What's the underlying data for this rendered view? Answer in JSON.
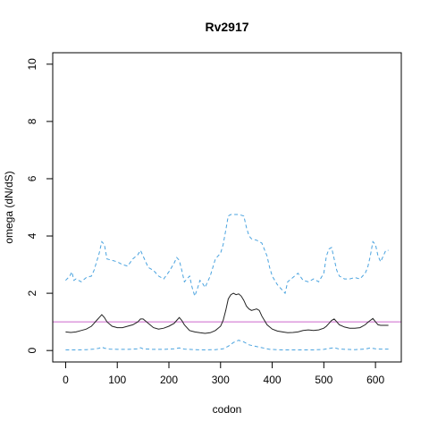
{
  "chart_data": {
    "type": "line",
    "title": "Rv2917",
    "xlabel": "codon",
    "ylabel": "omega (dN/dS)",
    "xlim": [
      -25,
      650
    ],
    "ylim": [
      -0.4,
      10.4
    ],
    "xticks": [
      0,
      100,
      200,
      300,
      400,
      500,
      600
    ],
    "yticks": [
      0,
      2,
      4,
      6,
      8,
      10
    ],
    "grid": false,
    "reference_line": {
      "y": 1,
      "color": "#cc66cc"
    },
    "series": [
      {
        "role": "upper-ci",
        "color": "#4aa3df",
        "style": "dashed",
        "x": [
          0,
          8,
          12,
          16,
          20,
          30,
          40,
          50,
          55,
          60,
          65,
          70,
          75,
          80,
          90,
          100,
          110,
          120,
          130,
          140,
          145,
          150,
          160,
          170,
          180,
          190,
          200,
          210,
          215,
          220,
          225,
          230,
          240,
          245,
          250,
          255,
          260,
          265,
          270,
          280,
          290,
          300,
          305,
          310,
          315,
          320,
          325,
          335,
          345,
          350,
          355,
          360,
          370,
          380,
          390,
          395,
          400,
          410,
          420,
          425,
          430,
          440,
          450,
          460,
          470,
          480,
          490,
          500,
          505,
          510,
          515,
          520,
          525,
          530,
          540,
          550,
          560,
          570,
          580,
          585,
          590,
          595,
          600,
          605,
          610,
          615,
          620,
          625
        ],
        "y": [
          2.45,
          2.6,
          2.75,
          2.45,
          2.5,
          2.4,
          2.55,
          2.6,
          2.8,
          3.1,
          3.4,
          3.8,
          3.7,
          3.2,
          3.15,
          3.1,
          3.0,
          2.95,
          3.2,
          3.35,
          3.5,
          3.3,
          2.9,
          2.8,
          2.6,
          2.5,
          2.75,
          3.05,
          3.25,
          3.15,
          2.8,
          2.4,
          2.6,
          2.2,
          1.9,
          2.15,
          2.45,
          2.35,
          2.2,
          2.6,
          3.2,
          3.4,
          3.7,
          4.2,
          4.7,
          4.75,
          4.75,
          4.75,
          4.7,
          4.3,
          4.0,
          3.9,
          3.85,
          3.75,
          3.3,
          2.9,
          2.6,
          2.3,
          2.1,
          2.0,
          2.4,
          2.55,
          2.7,
          2.45,
          2.4,
          2.5,
          2.4,
          2.7,
          3.3,
          3.55,
          3.6,
          3.2,
          2.8,
          2.6,
          2.5,
          2.5,
          2.55,
          2.5,
          2.7,
          2.9,
          3.3,
          3.8,
          3.7,
          3.3,
          3.1,
          3.3,
          3.5,
          3.5
        ]
      },
      {
        "role": "estimate",
        "color": "#222222",
        "style": "solid",
        "x": [
          0,
          10,
          20,
          30,
          40,
          50,
          55,
          60,
          65,
          70,
          75,
          80,
          90,
          100,
          110,
          120,
          130,
          140,
          145,
          150,
          160,
          170,
          180,
          190,
          200,
          210,
          215,
          220,
          225,
          230,
          240,
          250,
          260,
          270,
          280,
          290,
          300,
          305,
          310,
          315,
          320,
          325,
          330,
          335,
          340,
          345,
          350,
          355,
          360,
          370,
          375,
          380,
          390,
          400,
          410,
          420,
          430,
          440,
          450,
          460,
          470,
          480,
          490,
          500,
          505,
          510,
          515,
          520,
          525,
          530,
          540,
          550,
          560,
          570,
          580,
          585,
          590,
          595,
          600,
          605,
          610,
          620,
          625
        ],
        "y": [
          0.65,
          0.63,
          0.65,
          0.7,
          0.75,
          0.85,
          0.95,
          1.05,
          1.15,
          1.25,
          1.15,
          1.0,
          0.85,
          0.8,
          0.8,
          0.85,
          0.9,
          1.0,
          1.1,
          1.1,
          0.95,
          0.8,
          0.75,
          0.78,
          0.85,
          0.95,
          1.05,
          1.15,
          1.05,
          0.9,
          0.7,
          0.65,
          0.62,
          0.6,
          0.62,
          0.7,
          0.85,
          1.05,
          1.4,
          1.8,
          1.95,
          2.0,
          1.95,
          1.98,
          1.9,
          1.75,
          1.55,
          1.45,
          1.4,
          1.45,
          1.4,
          1.2,
          0.9,
          0.75,
          0.68,
          0.65,
          0.62,
          0.63,
          0.65,
          0.7,
          0.72,
          0.7,
          0.72,
          0.78,
          0.85,
          0.95,
          1.05,
          1.1,
          1.0,
          0.9,
          0.82,
          0.78,
          0.78,
          0.8,
          0.9,
          0.98,
          1.05,
          1.12,
          1.0,
          0.9,
          0.88,
          0.88,
          0.88
        ]
      },
      {
        "role": "lower-ci",
        "color": "#4aa3df",
        "style": "dashed",
        "x": [
          0,
          20,
          40,
          55,
          65,
          70,
          75,
          85,
          100,
          120,
          140,
          145,
          150,
          170,
          190,
          210,
          220,
          230,
          250,
          270,
          290,
          305,
          315,
          325,
          335,
          345,
          355,
          365,
          380,
          395,
          420,
          450,
          480,
          500,
          510,
          520,
          530,
          560,
          580,
          590,
          600,
          610,
          625
        ],
        "y": [
          0.02,
          0.02,
          0.03,
          0.05,
          0.08,
          0.12,
          0.08,
          0.05,
          0.04,
          0.04,
          0.06,
          0.1,
          0.06,
          0.04,
          0.04,
          0.06,
          0.09,
          0.05,
          0.03,
          0.02,
          0.03,
          0.06,
          0.15,
          0.28,
          0.36,
          0.3,
          0.2,
          0.16,
          0.1,
          0.04,
          0.02,
          0.02,
          0.02,
          0.04,
          0.07,
          0.1,
          0.05,
          0.03,
          0.05,
          0.09,
          0.06,
          0.05,
          0.05
        ]
      }
    ]
  }
}
